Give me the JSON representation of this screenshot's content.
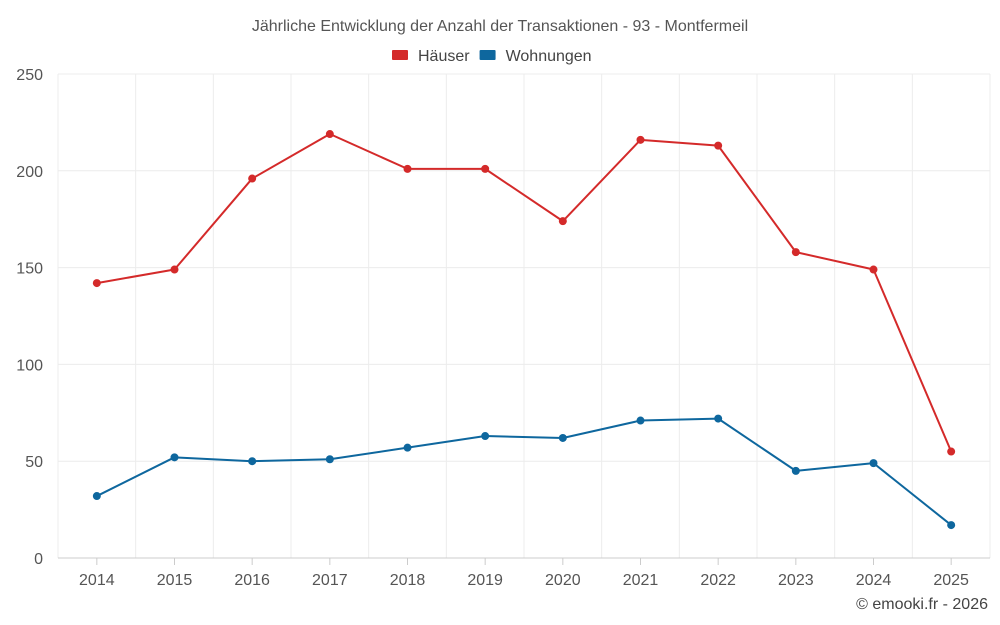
{
  "chart_data": {
    "type": "line",
    "title": "Jährliche Entwicklung der Anzahl der Transaktionen - 93 - Montfermeil",
    "xlabel": "",
    "ylabel": "",
    "categories": [
      "2014",
      "2015",
      "2016",
      "2017",
      "2018",
      "2019",
      "2020",
      "2021",
      "2022",
      "2023",
      "2024",
      "2025"
    ],
    "ylim": [
      0,
      250
    ],
    "yticks": [
      0,
      50,
      100,
      150,
      200,
      250
    ],
    "grid": true,
    "legend_position": "top-center",
    "series": [
      {
        "name": "Häuser",
        "color": "#d42a2a",
        "values": [
          142,
          149,
          196,
          219,
          201,
          201,
          174,
          216,
          213,
          158,
          149,
          55
        ]
      },
      {
        "name": "Wohnungen",
        "color": "#0e679e",
        "values": [
          32,
          52,
          50,
          51,
          57,
          63,
          62,
          71,
          72,
          45,
          49,
          17
        ]
      }
    ]
  },
  "credit": "© emooki.fr - 2026"
}
